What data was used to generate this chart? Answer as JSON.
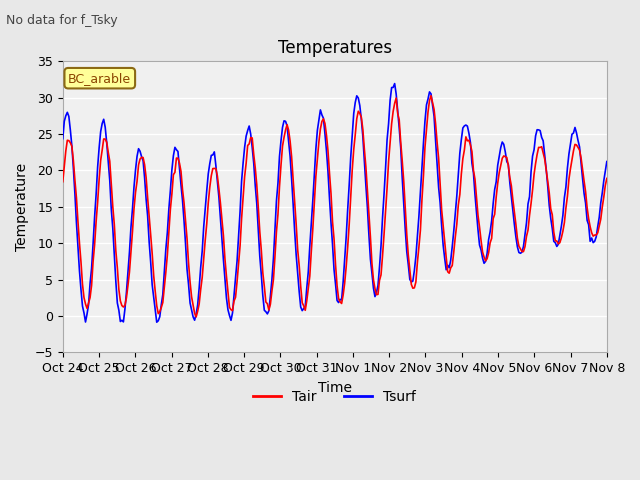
{
  "title": "Temperatures",
  "subtitle": "No data for f_Tsky",
  "xlabel": "Time",
  "ylabel": "Temperature",
  "ylim": [
    -5,
    35
  ],
  "legend_label_tair": "Tair",
  "legend_label_tsurf": "Tsurf",
  "box_label": "BC_arable",
  "xtick_labels": [
    "Oct 24",
    "Oct 25",
    "Oct 26",
    "Oct 27",
    "Oct 28",
    "Oct 29",
    "Oct 30",
    "Oct 31",
    "Nov 1",
    "Nov 2",
    "Nov 3",
    "Nov 4",
    "Nov 5",
    "Nov 6",
    "Nov 7",
    "Nov 8"
  ],
  "tair_color": "#ff0000",
  "tsurf_color": "#0000ff",
  "bg_color": "#e8e8e8",
  "plot_bg_color": "#f0f0f0",
  "grid_color": "#ffffff",
  "tair_mins": [
    2,
    1,
    1,
    0,
    0,
    1,
    1,
    1,
    2,
    3,
    4,
    7,
    8,
    9,
    10,
    11
  ],
  "tair_maxs": [
    24,
    25,
    22,
    22,
    20,
    24,
    26,
    27,
    28,
    29,
    31,
    25,
    22,
    23,
    24,
    22
  ],
  "tsurf_mins": [
    0,
    -1,
    -1,
    -1,
    0,
    0,
    0,
    1,
    2,
    4,
    5,
    7,
    8,
    9,
    10,
    10
  ],
  "tsurf_maxs": [
    28,
    27,
    23,
    23,
    22,
    26,
    27,
    28,
    30,
    32,
    31,
    27,
    23,
    26,
    26,
    23
  ],
  "n_days": 15
}
